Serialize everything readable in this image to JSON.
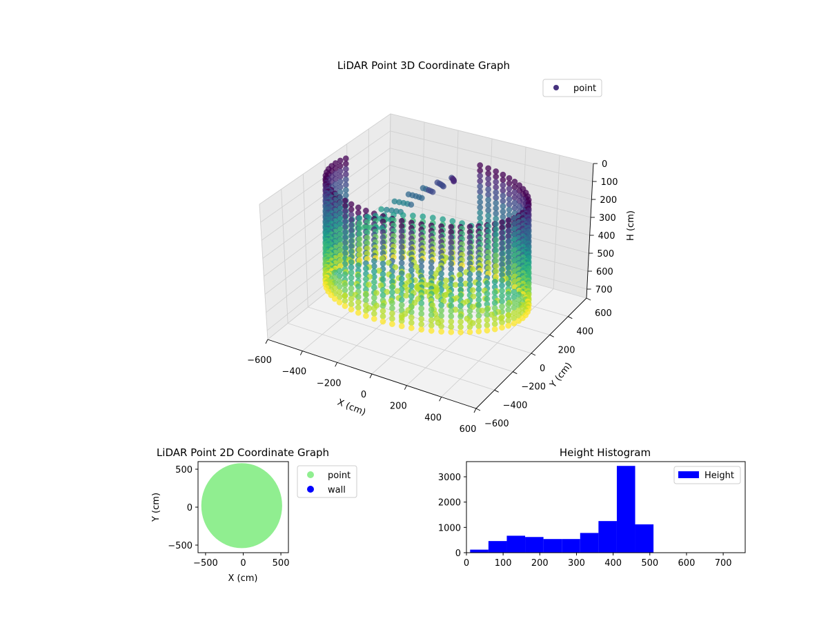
{
  "colors": {
    "point_3d": "#46327e",
    "point_2d": "#90ee90",
    "wall": "#0000ff",
    "histogram": "#0000ff",
    "viridis_dark": "#440154",
    "viridis_mid": "#21918c",
    "viridis_light": "#fde725"
  },
  "chart_data": [
    {
      "id": "lidar-3d",
      "type": "scatter",
      "title": "LiDAR Point 3D Coordinate Graph",
      "xlabel": "X (cm)",
      "ylabel": "Y (cm)",
      "zlabel": "H (cm)",
      "xlim": [
        -600,
        600
      ],
      "ylim": [
        -600,
        600
      ],
      "zlim": [
        750,
        0
      ],
      "xticks": [
        "−600",
        "−400",
        "−200",
        "0",
        "200",
        "400",
        "600"
      ],
      "yticks": [
        "−600",
        "−400",
        "−200",
        "0",
        "200",
        "400",
        "600"
      ],
      "zticks": [
        "0",
        "100",
        "200",
        "300",
        "400",
        "500",
        "600",
        "700"
      ],
      "legend": [
        {
          "label": "point",
          "color": "#46327e"
        }
      ],
      "legend_position": "top-right",
      "grid": true,
      "colormap": "viridis",
      "description_of_points": "cylindrical wall of points, radius ~500 cm, heights 0–500 cm, inverted height axis"
    },
    {
      "id": "lidar-2d",
      "type": "scatter",
      "title": "LiDAR Point 2D Coordinate Graph",
      "xlabel": "X (cm)",
      "ylabel": "Y (cm)",
      "xlim": [
        -600,
        600
      ],
      "ylim": [
        -600,
        600
      ],
      "xticks": [
        "−500",
        "0",
        "500"
      ],
      "yticks": [
        "−500",
        "0",
        "500"
      ],
      "legend": [
        {
          "label": "point",
          "color": "#90ee90"
        },
        {
          "label": "wall",
          "color": "#0000ff"
        }
      ],
      "legend_position": "outside-right",
      "grid": false
    },
    {
      "id": "height-hist",
      "type": "bar",
      "title": "Height Histogram",
      "xlabel": "",
      "ylabel": "",
      "xlim": [
        0,
        760
      ],
      "ylim": [
        0,
        3600
      ],
      "xticks": [
        "0",
        "100",
        "200",
        "300",
        "400",
        "500",
        "600",
        "700"
      ],
      "yticks": [
        "0",
        "1000",
        "2000",
        "3000"
      ],
      "bin_edges": [
        10,
        60,
        110,
        160,
        210,
        260,
        310,
        360,
        410,
        460,
        510,
        560,
        610,
        660,
        710,
        760
      ],
      "values": [
        120,
        460,
        670,
        620,
        540,
        540,
        780,
        1250,
        3430,
        1120,
        0,
        0,
        0,
        0,
        0
      ],
      "legend": [
        {
          "label": "Height",
          "color": "#0000ff"
        }
      ],
      "legend_position": "top-right",
      "grid": false
    }
  ]
}
